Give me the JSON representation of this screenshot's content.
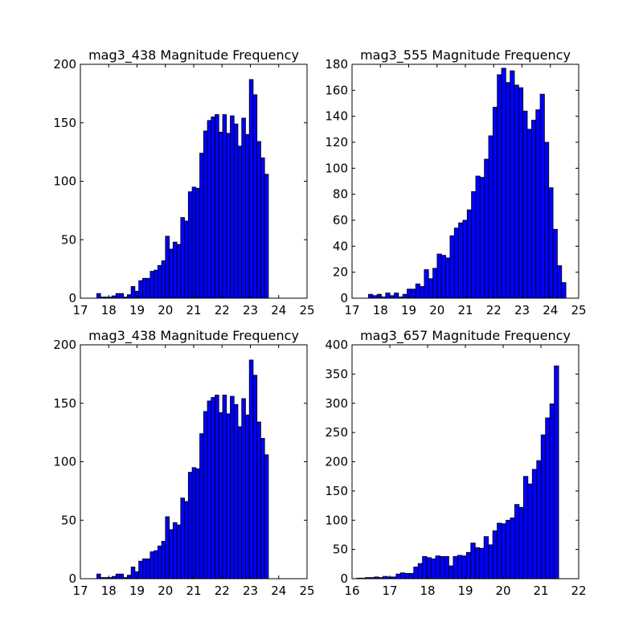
{
  "figure": {
    "background": "#ffffff",
    "bar_color": "#0000ff",
    "edge_color": "#000000"
  },
  "chart_data": [
    {
      "type": "bar",
      "title": "mag3_438 Magnitude Frequency",
      "xlabel": "",
      "ylabel": "",
      "xlim": [
        17,
        25
      ],
      "ylim": [
        0,
        200
      ],
      "xticks": [
        17,
        18,
        19,
        20,
        21,
        22,
        23,
        24,
        25
      ],
      "yticks": [
        0,
        50,
        100,
        150,
        200
      ],
      "bin_start": 17.58,
      "bin_width": 0.1346,
      "values": [
        4,
        1,
        1,
        1,
        2,
        4,
        4,
        1,
        3,
        10,
        6,
        15,
        17,
        17,
        23,
        24,
        28,
        32,
        53,
        42,
        48,
        46,
        69,
        66,
        91,
        95,
        94,
        124,
        143,
        152,
        155,
        157,
        142,
        157,
        141,
        156,
        149,
        130,
        154,
        140,
        187,
        174,
        134,
        120,
        106
      ]
    },
    {
      "type": "bar",
      "title": "mag3_555 Magnitude Frequency",
      "xlabel": "",
      "ylabel": "",
      "xlim": [
        17,
        25
      ],
      "ylim": [
        0,
        180
      ],
      "xticks": [
        17,
        18,
        19,
        20,
        21,
        22,
        23,
        24,
        25
      ],
      "yticks": [
        0,
        20,
        40,
        60,
        80,
        100,
        120,
        140,
        160,
        180
      ],
      "bin_start": 17.58,
      "bin_width": 0.1515,
      "values": [
        3,
        2,
        3,
        1,
        4,
        2,
        4,
        1,
        3,
        7,
        7,
        11,
        9,
        22,
        15,
        23,
        34,
        33,
        31,
        48,
        54,
        58,
        60,
        68,
        82,
        94,
        93,
        107,
        125,
        147,
        172,
        177,
        166,
        175,
        164,
        162,
        144,
        130,
        137,
        145,
        157,
        120,
        85,
        53,
        25,
        12
      ]
    },
    {
      "type": "bar",
      "title": "mag3_438 Magnitude Frequency",
      "xlabel": "",
      "ylabel": "",
      "xlim": [
        17,
        25
      ],
      "ylim": [
        0,
        200
      ],
      "xticks": [
        17,
        18,
        19,
        20,
        21,
        22,
        23,
        24,
        25
      ],
      "yticks": [
        0,
        50,
        100,
        150,
        200
      ],
      "bin_start": 17.58,
      "bin_width": 0.1346,
      "values": [
        4,
        1,
        1,
        1,
        2,
        4,
        4,
        1,
        3,
        10,
        6,
        15,
        17,
        17,
        23,
        24,
        28,
        32,
        53,
        42,
        48,
        46,
        69,
        66,
        91,
        95,
        94,
        124,
        143,
        152,
        155,
        157,
        142,
        157,
        141,
        156,
        149,
        130,
        154,
        140,
        187,
        174,
        134,
        120,
        106
      ]
    },
    {
      "type": "bar",
      "title": "mag3_657 Magnitude Frequency",
      "xlabel": "",
      "ylabel": "",
      "xlim": [
        16,
        22
      ],
      "ylim": [
        0,
        400
      ],
      "xticks": [
        16,
        17,
        18,
        19,
        20,
        21,
        22
      ],
      "yticks": [
        0,
        50,
        100,
        150,
        200,
        250,
        300,
        350,
        400
      ],
      "bin_start": 16.12,
      "bin_width": 0.1163,
      "values": [
        1,
        1,
        2,
        2,
        3,
        2,
        4,
        3,
        3,
        8,
        10,
        9,
        9,
        20,
        26,
        38,
        36,
        34,
        39,
        38,
        38,
        22,
        38,
        40,
        39,
        45,
        61,
        53,
        52,
        72,
        58,
        82,
        95,
        94,
        100,
        104,
        127,
        122,
        175,
        162,
        187,
        202,
        246,
        275,
        299,
        364
      ]
    }
  ]
}
